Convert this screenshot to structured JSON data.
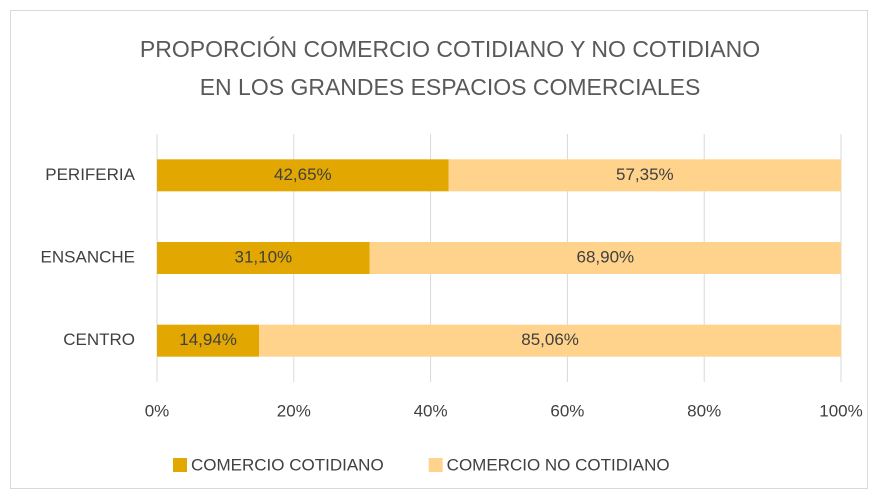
{
  "chart_data": {
    "type": "stacked_barh",
    "title": [
      "PROPORCIÓN COMERCIO COTIDIANO Y NO COTIDIANO",
      "EN LOS GRANDES ESPACIOS COMERCIALES"
    ],
    "categories": [
      "PERIFERIA",
      "ENSANCHE",
      "CENTRO"
    ],
    "series": [
      {
        "name": "COMERCIO COTIDIANO",
        "color": "#e2a700",
        "values": [
          42.65,
          31.1,
          14.94
        ],
        "value_labels": [
          "42,65%",
          "31,10%",
          "14,94%"
        ]
      },
      {
        "name": "COMERCIO NO COTIDIANO",
        "color": "#ffd38b",
        "values": [
          57.35,
          68.9,
          85.06
        ],
        "value_labels": [
          "57,35%",
          "68,90%",
          "85,06%"
        ]
      }
    ],
    "xlim": [
      0,
      100
    ],
    "xticks": [
      {
        "value": 0,
        "label": "0%"
      },
      {
        "value": 20,
        "label": "20%"
      },
      {
        "value": 40,
        "label": "40%"
      },
      {
        "value": 60,
        "label": "60%"
      },
      {
        "value": 80,
        "label": "80%"
      },
      {
        "value": 100,
        "label": "100%"
      }
    ],
    "grid": true,
    "legend": "bottom"
  }
}
